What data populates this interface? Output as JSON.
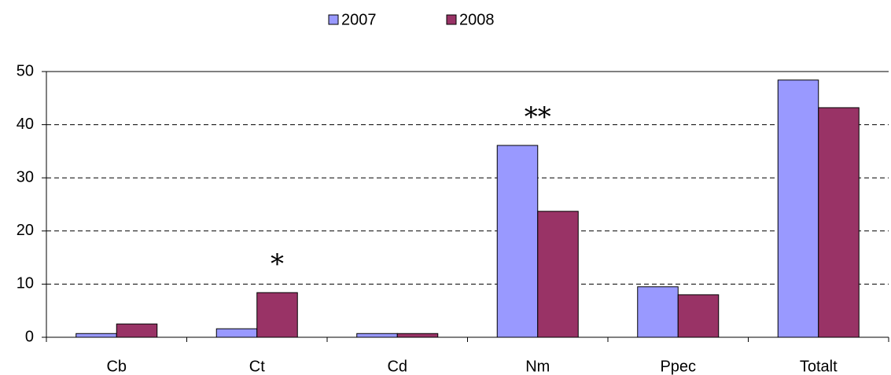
{
  "chart_data": {
    "type": "bar",
    "categories": [
      "Cb",
      "Ct",
      "Cd",
      "Nm",
      "Ppec",
      "Totalt"
    ],
    "series": [
      {
        "name": "2007",
        "color": "#9999ff",
        "values": [
          0.7,
          1.6,
          0.7,
          36.1,
          9.5,
          48.4
        ]
      },
      {
        "name": "2008",
        "color": "#993366",
        "values": [
          2.5,
          8.4,
          0.7,
          23.7,
          8.0,
          43.2
        ]
      }
    ],
    "ylim": [
      0,
      50
    ],
    "yticks": [
      0,
      10,
      20,
      30,
      40,
      50
    ],
    "grid": true,
    "legend": "top",
    "annotations": [
      {
        "text": "*",
        "category": 1,
        "series": 1
      },
      {
        "text": "**",
        "category": 3
      }
    ]
  }
}
